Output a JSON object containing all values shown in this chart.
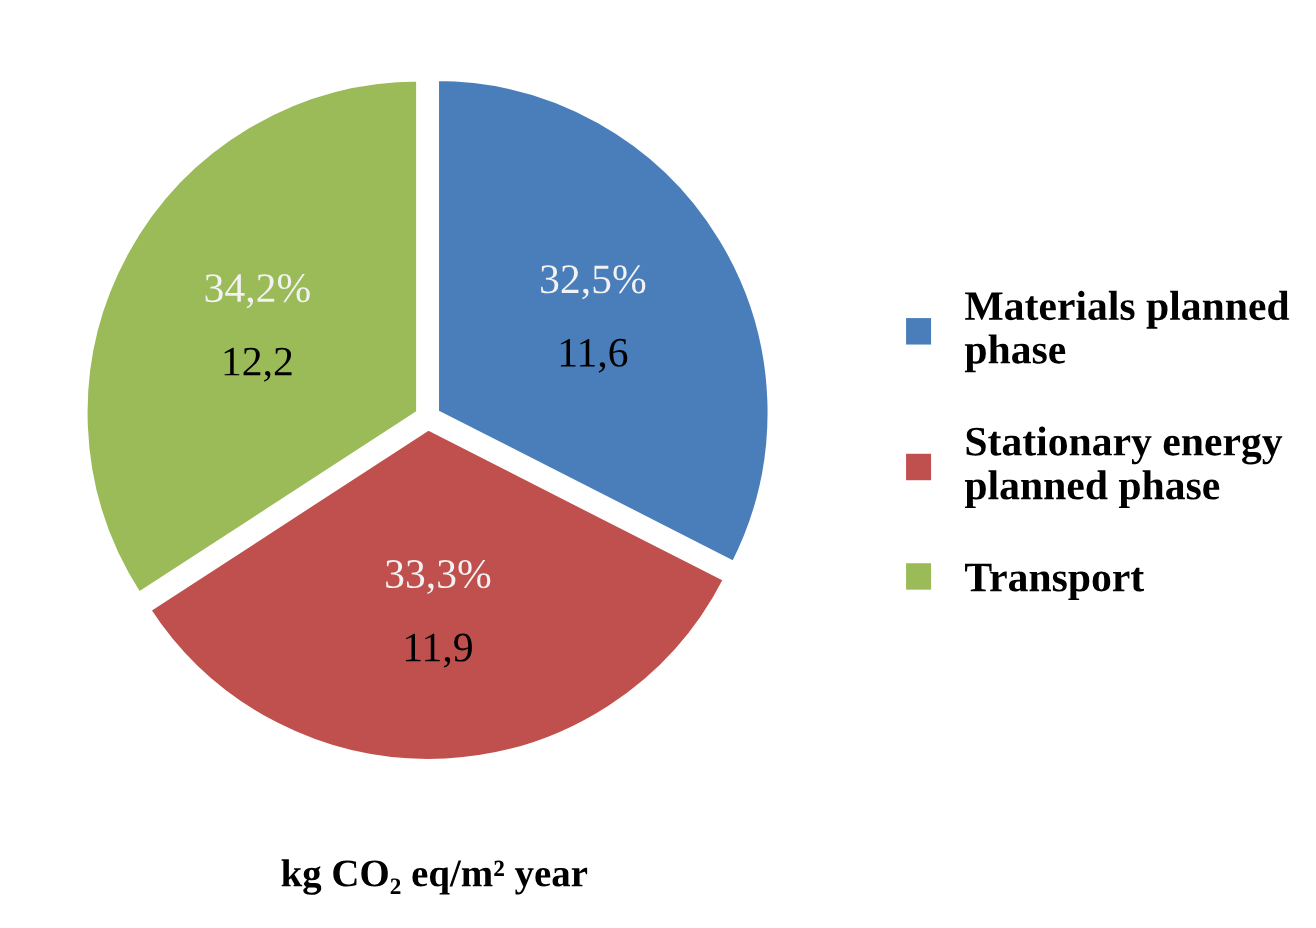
{
  "chart_data": {
    "type": "pie",
    "xlabel": "kg CO₂ eq/m² year",
    "categories": [
      "Materials planned phase",
      "Stationary energy planned phase",
      "Transport"
    ],
    "values": [
      11.6,
      11.9,
      12.2
    ],
    "value_labels": [
      "32,5%\n11,6",
      "33,3%\n11,9",
      "34,2%\n12,2"
    ],
    "colors": [
      "#4a7ebb",
      "#c0504d",
      "#9bbb59"
    ],
    "legend": "right"
  }
}
